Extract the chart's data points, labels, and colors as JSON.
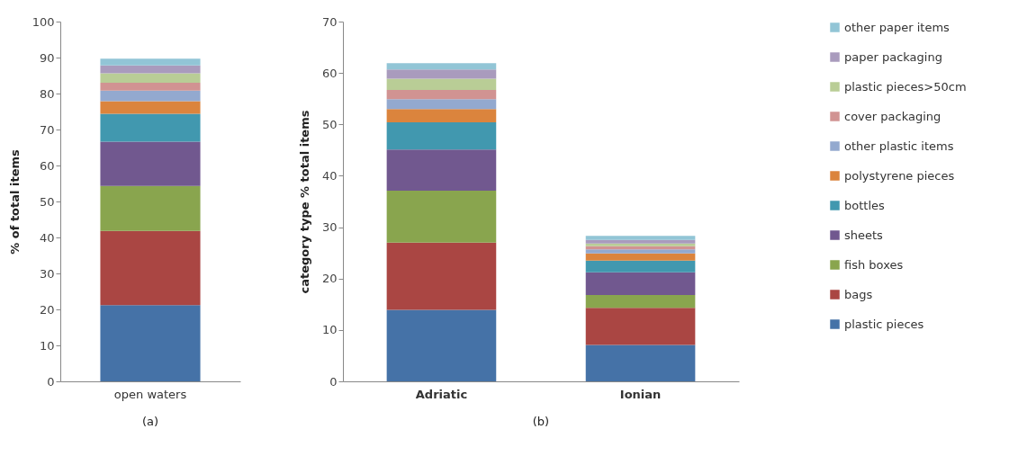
{
  "chart_data": [
    {
      "type": "bar",
      "stacked": true,
      "categories": [
        "open waters"
      ],
      "ylabel": "% of total items",
      "ylim": [
        0,
        100
      ],
      "yticks": [
        0,
        10,
        20,
        30,
        40,
        50,
        60,
        70,
        80,
        90,
        100
      ],
      "grid": false,
      "legend": false,
      "annotations": [
        "(a)"
      ],
      "series": [
        {
          "color": "#4572a7",
          "values": [
            21.2
          ]
        },
        {
          "color": "#aa4643",
          "values": [
            20.6
          ]
        },
        {
          "color": "#89a54e",
          "values": [
            12.5
          ]
        },
        {
          "color": "#71588f",
          "values": [
            12.3
          ]
        },
        {
          "color": "#4198af",
          "values": [
            7.8
          ]
        },
        {
          "color": "#db843d",
          "values": [
            3.5
          ]
        },
        {
          "color": "#93a9cf",
          "values": [
            2.9
          ]
        },
        {
          "color": "#d19392",
          "values": [
            2.2
          ]
        },
        {
          "color": "#b9cd96",
          "values": [
            2.6
          ]
        },
        {
          "color": "#a99bbd",
          "values": [
            2.2
          ]
        },
        {
          "color": "#92c5d6",
          "values": [
            1.9
          ]
        }
      ]
    },
    {
      "type": "bar",
      "stacked": true,
      "categories": [
        "Adriatic",
        "Ionian"
      ],
      "ylabel": "category type % total items",
      "ylim": [
        0,
        70
      ],
      "yticks": [
        0,
        10,
        20,
        30,
        40,
        50,
        60,
        70
      ],
      "grid": false,
      "legend": "right",
      "annotations": [
        "(b)"
      ],
      "series": [
        {
          "name": "plastic pieces",
          "color": "#4572a7",
          "values": [
            13.9,
            7.1
          ]
        },
        {
          "name": "bags",
          "color": "#aa4643",
          "values": [
            13.1,
            7.2
          ]
        },
        {
          "name": "fish boxes",
          "color": "#89a54e",
          "values": [
            10.1,
            2.5
          ]
        },
        {
          "name": "sheets",
          "color": "#71588f",
          "values": [
            8.0,
            4.4
          ]
        },
        {
          "name": "bottles",
          "color": "#4198af",
          "values": [
            5.3,
            2.3
          ]
        },
        {
          "name": "polystyrene pieces",
          "color": "#db843d",
          "values": [
            2.6,
            1.4
          ]
        },
        {
          "name": "other plastic items",
          "color": "#93a9cf",
          "values": [
            1.9,
            0.8
          ]
        },
        {
          "name": "cover packaging",
          "color": "#d19392",
          "values": [
            1.8,
            0.6
          ]
        },
        {
          "name": "plastic pieces>50cm",
          "color": "#b9cd96",
          "values": [
            2.2,
            0.5
          ]
        },
        {
          "name": "paper packaging",
          "color": "#a99bbd",
          "values": [
            1.8,
            0.7
          ]
        },
        {
          "name": "other paper items",
          "color": "#92c5d6",
          "values": [
            1.2,
            0.8
          ]
        }
      ]
    }
  ]
}
